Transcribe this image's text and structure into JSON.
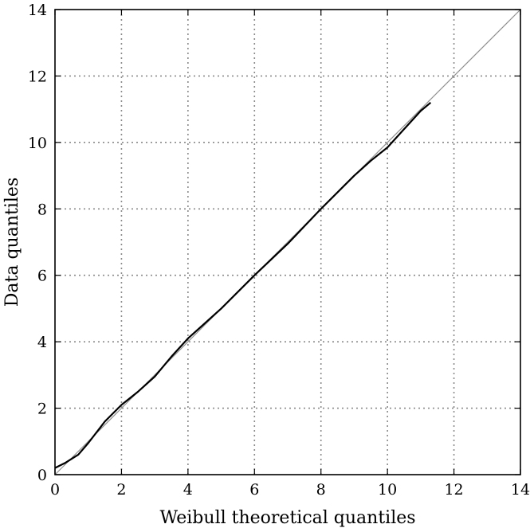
{
  "chart_data": {
    "type": "line",
    "title": "",
    "xlabel": "Weibull theoretical quantiles",
    "ylabel": "Data quantiles",
    "xlim": [
      0,
      14
    ],
    "ylim": [
      0,
      14
    ],
    "grid": true,
    "x_ticks": [
      "0",
      "2",
      "4",
      "6",
      "8",
      "10",
      "12",
      "14"
    ],
    "y_ticks": [
      "0",
      "2",
      "4",
      "6",
      "8",
      "10",
      "12",
      "14"
    ],
    "series": [
      {
        "role": "reference",
        "color": "#8f8f8f",
        "x": [
          0,
          14
        ],
        "y": [
          0,
          14
        ]
      },
      {
        "role": "data",
        "color": "#000000",
        "x": [
          0.0,
          0.3,
          0.7,
          1.0,
          1.5,
          2.0,
          2.5,
          3.0,
          3.5,
          4.0,
          4.5,
          5.0,
          6.0,
          7.0,
          8.0,
          9.0,
          9.5,
          10.0,
          10.5,
          11.0,
          11.3
        ],
        "y": [
          0.2,
          0.35,
          0.6,
          0.95,
          1.6,
          2.1,
          2.5,
          2.95,
          3.55,
          4.1,
          4.55,
          5.0,
          6.0,
          6.95,
          8.0,
          9.0,
          9.45,
          9.85,
          10.4,
          10.95,
          11.2
        ]
      }
    ]
  }
}
